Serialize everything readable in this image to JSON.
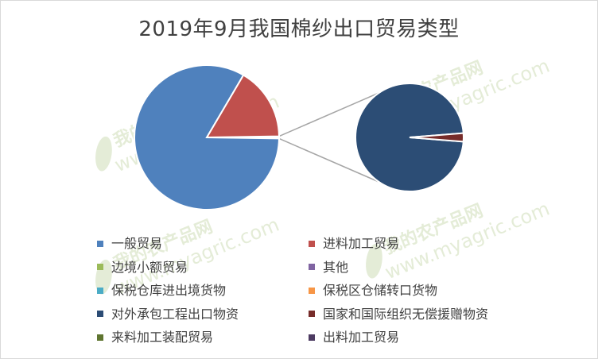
{
  "chart_data": {
    "type": "pie",
    "title": "2019年9月我国棉纱出口贸易类型",
    "subtype": "pie-of-pie",
    "categories": [
      "一般贸易",
      "进料加工贸易",
      "边境小额贸易",
      "其他",
      "保税仓库进出境货物",
      "保税区仓储转口货物",
      "对外承包工程出口物资",
      "国家和国际组织无偿援赠物资",
      "来料加工装配贸易",
      "出料加工贸易"
    ],
    "colors": [
      "#4f81bd",
      "#c0504d",
      "#9bbb59",
      "#8064a2",
      "#4bacc6",
      "#f79646",
      "#2c4d75",
      "#772c2a",
      "#5f7530",
      "#4d3b62"
    ],
    "main_pie": {
      "slices": [
        {
          "label": "一般贸易",
          "percent": 83.2
        },
        {
          "label": "进料加工贸易",
          "percent": 16.3
        },
        {
          "label": "其他 (secondary)",
          "percent": 0.5
        }
      ]
    },
    "secondary_pie": {
      "slices": [
        {
          "label": "对外承包工程出口物资",
          "percent": 97.5
        },
        {
          "label": "国家和国际组织无偿援赠物资",
          "percent": 2.5
        }
      ]
    },
    "legend": {
      "placement": "bottom",
      "columns": 2,
      "items": [
        {
          "label": "一般贸易",
          "color": "#4f81bd"
        },
        {
          "label": "进料加工贸易",
          "color": "#c0504d"
        },
        {
          "label": "边境小额贸易",
          "color": "#9bbb59"
        },
        {
          "label": "其他",
          "color": "#8064a2"
        },
        {
          "label": "保税仓库进出境货物",
          "color": "#4bacc6"
        },
        {
          "label": "保税区仓储转口货物",
          "color": "#f79646"
        },
        {
          "label": "对外承包工程出口物资",
          "color": "#2c4d75"
        },
        {
          "label": "国家和国际组织无偿援赠物资",
          "color": "#772c2a"
        },
        {
          "label": "来料加工装配贸易",
          "color": "#5f7530"
        },
        {
          "label": "出料加工贸易",
          "color": "#4d3b62"
        }
      ]
    }
  },
  "watermark": {
    "brand": "我的农产品网",
    "url": "www.myagric.com",
    "color": "#e4ecd7"
  }
}
